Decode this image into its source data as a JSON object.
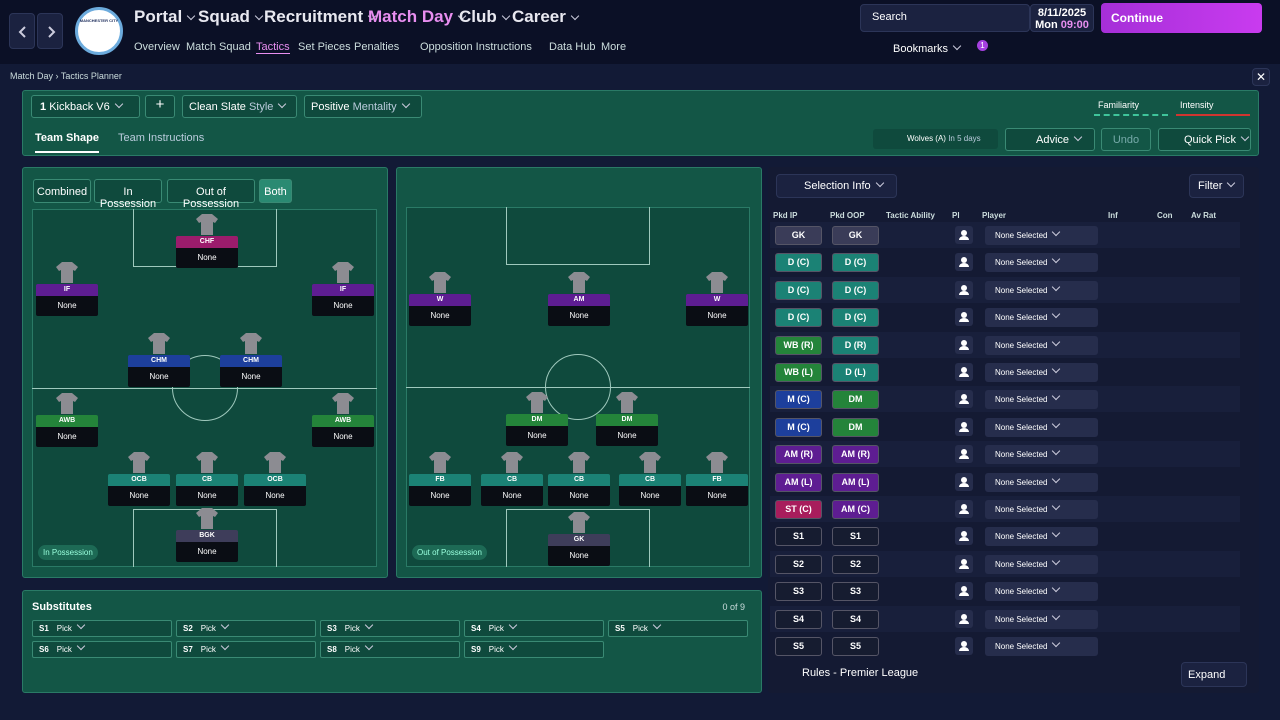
{
  "nav": {
    "club_crest": "MANCHESTER CITY",
    "items": [
      "Portal",
      "Squad",
      "Recruitment",
      "Match Day",
      "Club",
      "Career"
    ],
    "subitems": [
      "Overview",
      "Match Squad",
      "Tactics",
      "Set Pieces",
      "Penalties",
      "Opposition Instructions",
      "Data Hub",
      "More"
    ],
    "search": "Search",
    "date": "8/11/2025",
    "day": "Mon",
    "time": "09:00",
    "continue": "Continue",
    "bookmarks": "Bookmarks",
    "badge": "1"
  },
  "breadcrumb": [
    "Match Day",
    "Tactics Planner"
  ],
  "tactic_bar": {
    "slot": "1",
    "tactic": "Kickback V6",
    "style_value": "Clean Slate",
    "style_label": "Style",
    "mentality_value": "Positive",
    "mentality_label": "Mentality",
    "familiarity": "Familiarity",
    "intensity": "Intensity"
  },
  "tabs": [
    "Team Shape",
    "Team Instructions"
  ],
  "fixture": {
    "opponent": "Wolves (A)",
    "when": "In 5 days"
  },
  "actions": {
    "advice": "Advice",
    "undo": "Undo",
    "quick_pick": "Quick Pick"
  },
  "filters": [
    "Combined",
    "In Possession",
    "Out of Possession",
    "Both"
  ],
  "in_possession": {
    "label": "In Possession",
    "players": [
      {
        "role": "CHF",
        "player": "None",
        "color": "#9b1c6c"
      },
      {
        "role": "IF",
        "player": "None",
        "color": "#5e1d92"
      },
      {
        "role": "IF",
        "player": "None",
        "color": "#5e1d92"
      },
      {
        "role": "CHM",
        "player": "None",
        "color": "#1d3f9c"
      },
      {
        "role": "CHM",
        "player": "None",
        "color": "#1d3f9c"
      },
      {
        "role": "AWB",
        "player": "None",
        "color": "#24843a"
      },
      {
        "role": "AWB",
        "player": "None",
        "color": "#24843a"
      },
      {
        "role": "OCB",
        "player": "None",
        "color": "#1b8275"
      },
      {
        "role": "CB",
        "player": "None",
        "color": "#1b8275"
      },
      {
        "role": "OCB",
        "player": "None",
        "color": "#1b8275"
      },
      {
        "role": "BGK",
        "player": "None",
        "color": "#3e3d5a"
      }
    ]
  },
  "out_of_possession": {
    "label": "Out of Possession",
    "players": [
      {
        "role": "W",
        "player": "None",
        "color": "#5e1d92"
      },
      {
        "role": "AM",
        "player": "None",
        "color": "#5e1d92"
      },
      {
        "role": "W",
        "player": "None",
        "color": "#5e1d92"
      },
      {
        "role": "DM",
        "player": "None",
        "color": "#24843a"
      },
      {
        "role": "DM",
        "player": "None",
        "color": "#24843a"
      },
      {
        "role": "FB",
        "player": "None",
        "color": "#1b8275"
      },
      {
        "role": "CB",
        "player": "None",
        "color": "#1b8275"
      },
      {
        "role": "CB",
        "player": "None",
        "color": "#1b8275"
      },
      {
        "role": "CB",
        "player": "None",
        "color": "#1b8275"
      },
      {
        "role": "FB",
        "player": "None",
        "color": "#1b8275"
      },
      {
        "role": "GK",
        "player": "None",
        "color": "#3e3d5a"
      }
    ]
  },
  "substitutes": {
    "title": "Substitutes",
    "count": "0 of 9",
    "slots": [
      {
        "slot": "S1",
        "pick": "Pick"
      },
      {
        "slot": "S2",
        "pick": "Pick"
      },
      {
        "slot": "S3",
        "pick": "Pick"
      },
      {
        "slot": "S4",
        "pick": "Pick"
      },
      {
        "slot": "S5",
        "pick": "Pick"
      },
      {
        "slot": "S6",
        "pick": "Pick"
      },
      {
        "slot": "S7",
        "pick": "Pick"
      },
      {
        "slot": "S8",
        "pick": "Pick"
      },
      {
        "slot": "S9",
        "pick": "Pick"
      }
    ]
  },
  "selection": {
    "title": "Selection Info",
    "filter": "Filter",
    "headers": [
      "Pkd IP",
      "Pkd OOP",
      "Tactic Ability",
      "Pl",
      "Player",
      "Inf",
      "Con",
      "Av Rat"
    ],
    "rows": [
      {
        "ip": "GK",
        "ip_color": "#3a3c58",
        "oop": "GK",
        "oop_color": "#3a3c58",
        "player": "None Selected"
      },
      {
        "ip": "D (C)",
        "ip_color": "#1b8275",
        "oop": "D (C)",
        "oop_color": "#1b8275",
        "player": "None Selected"
      },
      {
        "ip": "D (C)",
        "ip_color": "#1b8275",
        "oop": "D (C)",
        "oop_color": "#1b8275",
        "player": "None Selected"
      },
      {
        "ip": "D (C)",
        "ip_color": "#1b8275",
        "oop": "D (C)",
        "oop_color": "#1b8275",
        "player": "None Selected"
      },
      {
        "ip": "WB (R)",
        "ip_color": "#24843a",
        "oop": "D (R)",
        "oop_color": "#1b8275",
        "player": "None Selected"
      },
      {
        "ip": "WB (L)",
        "ip_color": "#24843a",
        "oop": "D (L)",
        "oop_color": "#1b8275",
        "player": "None Selected"
      },
      {
        "ip": "M (C)",
        "ip_color": "#1d3f9c",
        "oop": "DM",
        "oop_color": "#24843a",
        "player": "None Selected"
      },
      {
        "ip": "M (C)",
        "ip_color": "#1d3f9c",
        "oop": "DM",
        "oop_color": "#24843a",
        "player": "None Selected"
      },
      {
        "ip": "AM (R)",
        "ip_color": "#5e1d92",
        "oop": "AM (R)",
        "oop_color": "#5e1d92",
        "player": "None Selected"
      },
      {
        "ip": "AM (L)",
        "ip_color": "#5e1d92",
        "oop": "AM (L)",
        "oop_color": "#5e1d92",
        "player": "None Selected"
      },
      {
        "ip": "ST (C)",
        "ip_color": "#a81d5c",
        "oop": "AM (C)",
        "oop_color": "#5e1d92",
        "player": "None Selected"
      },
      {
        "ip": "S1",
        "ip_color": "#161c30",
        "oop": "S1",
        "oop_color": "#161c30",
        "player": "None Selected"
      },
      {
        "ip": "S2",
        "ip_color": "#161c30",
        "oop": "S2",
        "oop_color": "#161c30",
        "player": "None Selected"
      },
      {
        "ip": "S3",
        "ip_color": "#161c30",
        "oop": "S3",
        "oop_color": "#161c30",
        "player": "None Selected"
      },
      {
        "ip": "S4",
        "ip_color": "#161c30",
        "oop": "S4",
        "oop_color": "#161c30",
        "player": "None Selected"
      },
      {
        "ip": "S5",
        "ip_color": "#161c30",
        "oop": "S5",
        "oop_color": "#161c30",
        "player": "None Selected"
      }
    ],
    "rules": "Rules - Premier League",
    "expand": "Expand"
  }
}
